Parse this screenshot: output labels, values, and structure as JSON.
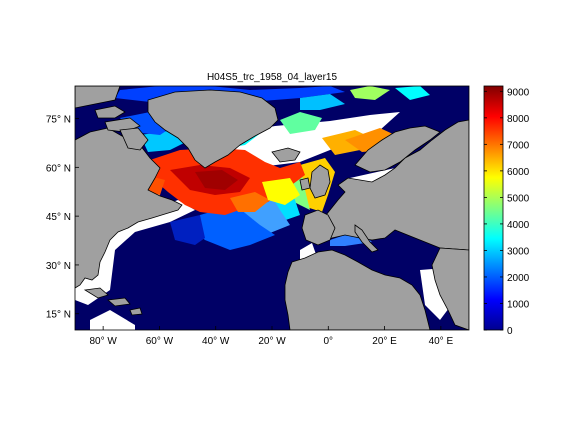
{
  "figure": {
    "title": "H04S5_trc_1958_04_layer15"
  },
  "map": {
    "lon_range": [
      -90,
      50
    ],
    "lat_range": [
      10,
      85
    ],
    "lon_ticks": [
      {
        "value": -80,
        "label": "80° W"
      },
      {
        "value": -60,
        "label": "60° W"
      },
      {
        "value": -40,
        "label": "40° W"
      },
      {
        "value": -20,
        "label": "20° W"
      },
      {
        "value": 0,
        "label": "0°"
      },
      {
        "value": 20,
        "label": "20° E"
      },
      {
        "value": 40,
        "label": "40° E"
      }
    ],
    "lat_ticks": [
      {
        "value": 75,
        "label": "75° N"
      },
      {
        "value": 60,
        "label": "60° N"
      },
      {
        "value": 45,
        "label": "45° N"
      },
      {
        "value": 30,
        "label": "30° N"
      },
      {
        "value": 15,
        "label": "15° N"
      }
    ],
    "land_color": "#a0a0a0",
    "ocean_low_color": "#000066",
    "nodata_color": "#ffffff"
  },
  "colorbar": {
    "min": 0,
    "max": 9200,
    "ticks": [
      {
        "value": 0,
        "label": "0"
      },
      {
        "value": 1000,
        "label": "1000"
      },
      {
        "value": 2000,
        "label": "2000"
      },
      {
        "value": 3000,
        "label": "3000"
      },
      {
        "value": 4000,
        "label": "4000"
      },
      {
        "value": 5000,
        "label": "5000"
      },
      {
        "value": 6000,
        "label": "6000"
      },
      {
        "value": 7000,
        "label": "7000"
      },
      {
        "value": 8000,
        "label": "8000"
      },
      {
        "value": 9000,
        "label": "9000"
      }
    ],
    "colormap": "jet"
  }
}
